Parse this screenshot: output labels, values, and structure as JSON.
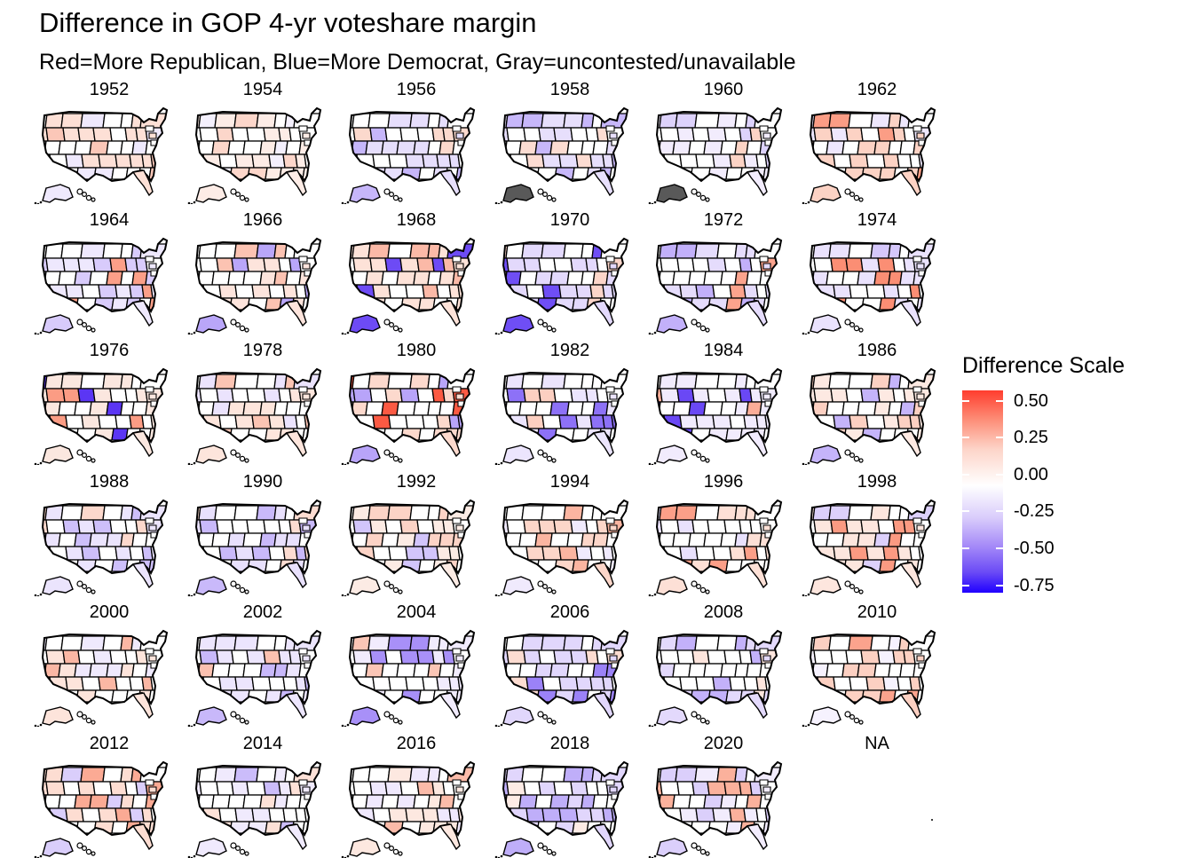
{
  "title": "Difference in GOP 4-yr voteshare margin",
  "subtitle": "Red=More Republican, Blue=More Democrat, Gray=uncontested/unavailable",
  "legend": {
    "title": "Difference Scale",
    "ticks": [
      "0.50",
      "0.25",
      "0.00",
      "-0.25",
      "-0.50",
      "-0.75"
    ],
    "tick_values": [
      0.5,
      0.25,
      0.0,
      -0.25,
      -0.5,
      -0.75
    ],
    "range": [
      -0.8,
      0.57
    ],
    "colors": {
      "max": "#ff3d2e",
      "mid": "#ffffff",
      "min": "#2000ff",
      "na": "#595959"
    }
  },
  "panels": [
    {
      "label": "1952",
      "tint": "#fde0d6",
      "hot": "#fbc7b8",
      "cool": "#efe9fd",
      "na": false
    },
    {
      "label": "1954",
      "tint": "#fdece6",
      "hot": "#fcd6ca",
      "cool": "#f4f0fd",
      "na": false
    },
    {
      "label": "1956",
      "tint": "#e6defc",
      "hot": "#fbd9cd",
      "cool": "#c6b6fa",
      "na": false
    },
    {
      "label": "1958",
      "tint": "#e7dffc",
      "hot": "#fcdcd2",
      "cool": "#c7b7fa",
      "na": true
    },
    {
      "label": "1960",
      "tint": "#f2ecfd",
      "hot": "#fcd3c5",
      "cool": "#ddd2fb",
      "na": true
    },
    {
      "label": "1962",
      "tint": "#fcd2c4",
      "hot": "#fb9d85",
      "cool": "#eee7fd",
      "na": false
    },
    {
      "label": "1964",
      "tint": "#eee8fd",
      "hot": "#fb9f88",
      "cool": "#d8cbfb",
      "na": false
    },
    {
      "label": "1966",
      "tint": "#fde4dc",
      "hot": "#fcc3b2",
      "cool": "#b9a6f9",
      "na": false
    },
    {
      "label": "1968",
      "tint": "#fde2d8",
      "hot": "#fbb9a7",
      "cool": "#6d4bf5",
      "na": false
    },
    {
      "label": "1970",
      "tint": "#e3d9fc",
      "hot": "#fcd5c9",
      "cool": "#6f4ef5",
      "na": false
    },
    {
      "label": "1972",
      "tint": "#e5dcfc",
      "hot": "#fba38d",
      "cool": "#c2b0fa",
      "na": false
    },
    {
      "label": "1974",
      "tint": "#eae2fd",
      "hot": "#fb8e74",
      "cool": "#d5c7fb",
      "na": false
    },
    {
      "label": "1976",
      "tint": "#fbe7df",
      "hot": "#fb9c84",
      "cool": "#5b36f4",
      "na": false
    },
    {
      "label": "1978",
      "tint": "#fde5dc",
      "hot": "#fbc4b3",
      "cool": "#ebe3fd",
      "na": false
    },
    {
      "label": "1980",
      "tint": "#fcd9cd",
      "hot": "#fb5a43",
      "cool": "#b8a4f9",
      "na": false
    },
    {
      "label": "1982",
      "tint": "#ece5fd",
      "hot": "#fccfc1",
      "cool": "#8d71f7",
      "na": false
    },
    {
      "label": "1984",
      "tint": "#f1ebfd",
      "hot": "#fbad98",
      "cool": "#6a48f5",
      "na": false
    },
    {
      "label": "1986",
      "tint": "#fde9e2",
      "hot": "#fcd0c2",
      "cool": "#c5b4fa",
      "na": false
    },
    {
      "label": "1988",
      "tint": "#ebe4fd",
      "hot": "#fcd8cc",
      "cool": "#cdbffa",
      "na": false
    },
    {
      "label": "1990",
      "tint": "#e8e0fc",
      "hot": "#fcdcd1",
      "cool": "#c9b9fa",
      "na": false
    },
    {
      "label": "1992",
      "tint": "#fcebe4",
      "hot": "#fcd3c6",
      "cool": "#d2c5fb",
      "na": false
    },
    {
      "label": "1994",
      "tint": "#fcd6c9",
      "hot": "#fbb5a1",
      "cool": "#f0eafd",
      "na": false
    },
    {
      "label": "1996",
      "tint": "#fde0d6",
      "hot": "#fb9f88",
      "cool": "#e9e1fd",
      "na": false
    },
    {
      "label": "1998",
      "tint": "#fde6de",
      "hot": "#fb9a82",
      "cool": "#dcd0fb",
      "na": false
    },
    {
      "label": "2000",
      "tint": "#fde4db",
      "hot": "#fbb7a4",
      "cool": "#efe9fd",
      "na": false
    },
    {
      "label": "2002",
      "tint": "#ece5fd",
      "hot": "#fbc1b0",
      "cool": "#c8b8fa",
      "na": false
    },
    {
      "label": "2004",
      "tint": "#f1ebfd",
      "hot": "#fbc6b6",
      "cool": "#a890f8",
      "na": false
    },
    {
      "label": "2006",
      "tint": "#e1d7fc",
      "hot": "#fcdcd1",
      "cool": "#9b82f7",
      "na": false
    },
    {
      "label": "2008",
      "tint": "#e3d9fc",
      "hot": "#fde5dd",
      "cool": "#c3b1fa",
      "na": false
    },
    {
      "label": "2010",
      "tint": "#fcd0c2",
      "hot": "#fba38d",
      "cool": "#f6f2fe",
      "na": false
    },
    {
      "label": "2012",
      "tint": "#fdddd2",
      "hot": "#fbaa94",
      "cool": "#dacefb",
      "na": false
    },
    {
      "label": "2014",
      "tint": "#f0eafd",
      "hot": "#fde1d7",
      "cool": "#cbbcfa",
      "na": false
    },
    {
      "label": "2016",
      "tint": "#fde8e0",
      "hot": "#fbbba9",
      "cool": "#efe8fd",
      "na": false
    },
    {
      "label": "2018",
      "tint": "#e1d6fc",
      "hot": "#fdebe5",
      "cool": "#bfaef9",
      "na": false
    },
    {
      "label": "2020",
      "tint": "#f2ecfd",
      "hot": "#fbb19c",
      "cool": "#dbcffb",
      "na": false
    },
    {
      "label": "NA",
      "empty": true
    }
  ]
}
